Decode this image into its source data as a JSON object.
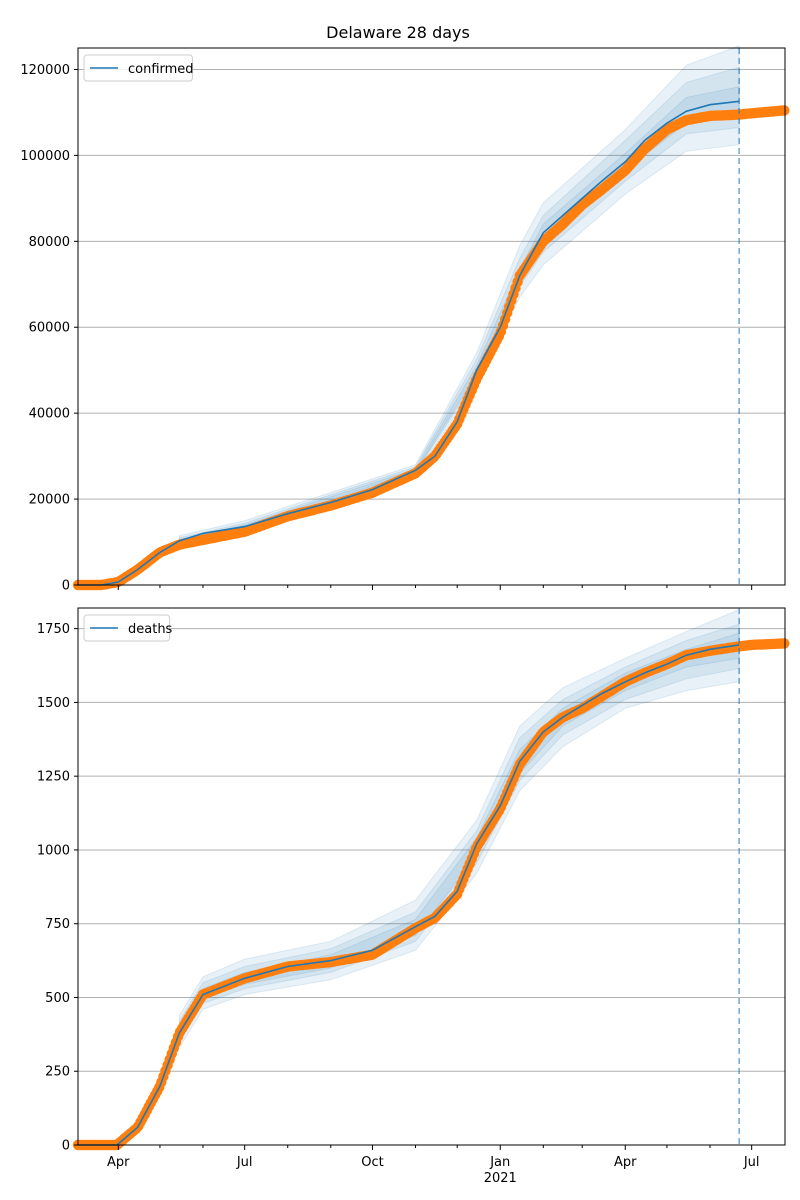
{
  "title": "Delaware 28 days",
  "x_ticks": {
    "major": [
      {
        "date": "2020-04-01",
        "label": "Apr"
      },
      {
        "date": "2020-07-01",
        "label": "Jul"
      },
      {
        "date": "2020-10-01",
        "label": "Oct"
      },
      {
        "date": "2021-01-01",
        "label": "Jan"
      },
      {
        "date": "2021-04-01",
        "label": "Apr"
      },
      {
        "date": "2021-07-01",
        "label": "Jul"
      }
    ],
    "year_label": {
      "date": "2021-01-01",
      "label": "2021"
    },
    "minor": [
      "2020-05-01",
      "2020-06-01",
      "2020-08-01",
      "2020-09-01",
      "2020-11-01",
      "2020-12-01",
      "2021-02-01",
      "2021-03-01",
      "2021-05-01",
      "2021-06-01"
    ]
  },
  "chart_data": [
    {
      "type": "line",
      "xlim": [
        "2020-03-03",
        "2021-07-25"
      ],
      "ylim": [
        0,
        125000
      ],
      "yticks": [
        0,
        20000,
        40000,
        60000,
        80000,
        100000,
        120000
      ],
      "grid": "horizontal",
      "legend": {
        "placement": "top-left",
        "entries": [
          "confirmed"
        ]
      },
      "forecast_start": "2021-06-22",
      "colors": {
        "model": "#1f77b4",
        "observed": "#ff7f0e",
        "band": "#1f77b4"
      },
      "series": [
        {
          "name": "confirmed",
          "kind": "model-median",
          "x": [
            "2020-03-03",
            "2020-03-20",
            "2020-04-01",
            "2020-04-15",
            "2020-05-01",
            "2020-05-15",
            "2020-06-01",
            "2020-07-01",
            "2020-08-01",
            "2020-09-01",
            "2020-10-01",
            "2020-11-01",
            "2020-11-15",
            "2020-12-01",
            "2020-12-15",
            "2021-01-01",
            "2021-01-15",
            "2021-02-01",
            "2021-02-15",
            "2021-03-01",
            "2021-03-15",
            "2021-04-01",
            "2021-04-15",
            "2021-05-01",
            "2021-05-15",
            "2021-06-01",
            "2021-06-22"
          ],
          "y": [
            0,
            0,
            700,
            3600,
            7600,
            10300,
            12000,
            13600,
            16600,
            19200,
            22200,
            26700,
            30000,
            38000,
            50000,
            60000,
            72000,
            82000,
            86000,
            90000,
            94000,
            98500,
            103500,
            107500,
            110300,
            111800,
            112600
          ]
        },
        {
          "name": "observed",
          "kind": "points",
          "x": [
            "2020-03-03",
            "2020-03-20",
            "2020-04-01",
            "2020-04-15",
            "2020-05-01",
            "2020-05-15",
            "2020-06-01",
            "2020-07-01",
            "2020-08-01",
            "2020-09-01",
            "2020-10-01",
            "2020-11-01",
            "2020-11-15",
            "2020-12-01",
            "2020-12-15",
            "2021-01-01",
            "2021-01-15",
            "2021-02-01",
            "2021-02-15",
            "2021-03-01",
            "2021-03-15",
            "2021-04-01",
            "2021-04-15",
            "2021-05-01",
            "2021-05-15",
            "2021-06-01",
            "2021-06-22",
            "2021-07-01",
            "2021-07-25"
          ],
          "y": [
            0,
            0,
            700,
            3600,
            7600,
            9400,
            10500,
            12400,
            16000,
            18500,
            21500,
            26000,
            30000,
            37500,
            48000,
            58500,
            72000,
            80000,
            84000,
            88500,
            92000,
            96500,
            101500,
            106000,
            108200,
            109200,
            109500,
            109800,
            110500
          ]
        },
        {
          "name": "band-outer",
          "kind": "band",
          "x": [
            "2020-05-15",
            "2020-07-01",
            "2020-11-01",
            "2020-12-15",
            "2021-01-15",
            "2021-02-01",
            "2021-04-01",
            "2021-05-15",
            "2021-06-22"
          ],
          "lower": [
            9000,
            12200,
            25800,
            46500,
            67000,
            74500,
            91000,
            101000,
            102500
          ],
          "upper": [
            11500,
            15000,
            28000,
            54000,
            79000,
            89000,
            106000,
            121000,
            125500
          ]
        },
        {
          "name": "band-mid",
          "kind": "band",
          "x": [
            "2020-05-15",
            "2020-07-01",
            "2020-11-01",
            "2020-12-15",
            "2021-01-15",
            "2021-02-01",
            "2021-04-01",
            "2021-05-15",
            "2021-06-22"
          ],
          "lower": [
            9600,
            12800,
            26200,
            48000,
            69500,
            77500,
            94000,
            105000,
            106500
          ],
          "upper": [
            11000,
            14400,
            27500,
            52500,
            76000,
            86000,
            103500,
            117000,
            120500
          ]
        },
        {
          "name": "band-inner",
          "kind": "band",
          "x": [
            "2020-05-15",
            "2020-07-01",
            "2020-11-01",
            "2020-12-15",
            "2021-01-15",
            "2021-02-01",
            "2021-04-01",
            "2021-05-15",
            "2021-06-22"
          ],
          "lower": [
            10000,
            13200,
            26400,
            49000,
            70800,
            79500,
            96500,
            107500,
            109500
          ],
          "upper": [
            10600,
            14000,
            27000,
            51000,
            73500,
            84000,
            100500,
            113500,
            116000
          ]
        }
      ]
    },
    {
      "type": "line",
      "xlim": [
        "2020-03-03",
        "2021-07-25"
      ],
      "ylim": [
        0,
        1820
      ],
      "yticks": [
        0,
        250,
        500,
        750,
        1000,
        1250,
        1500,
        1750
      ],
      "grid": "horizontal",
      "legend": {
        "placement": "top-left",
        "entries": [
          "deaths"
        ]
      },
      "forecast_start": "2021-06-22",
      "colors": {
        "model": "#1f77b4",
        "observed": "#ff7f0e",
        "band": "#1f77b4"
      },
      "series": [
        {
          "name": "deaths",
          "kind": "model-median",
          "x": [
            "2020-03-03",
            "2020-03-31",
            "2020-04-15",
            "2020-05-01",
            "2020-05-15",
            "2020-06-01",
            "2020-07-01",
            "2020-08-01",
            "2020-09-01",
            "2020-10-01",
            "2020-11-01",
            "2020-11-15",
            "2020-12-01",
            "2020-12-15",
            "2021-01-01",
            "2021-01-15",
            "2021-02-01",
            "2021-02-15",
            "2021-03-01",
            "2021-03-15",
            "2021-04-01",
            "2021-04-15",
            "2021-05-01",
            "2021-05-15",
            "2021-06-01",
            "2021-06-22"
          ],
          "y": [
            0,
            0,
            60,
            200,
            380,
            510,
            565,
            605,
            625,
            660,
            740,
            775,
            860,
            1020,
            1150,
            1300,
            1400,
            1450,
            1490,
            1530,
            1570,
            1600,
            1630,
            1660,
            1680,
            1695
          ]
        },
        {
          "name": "observed",
          "kind": "points",
          "x": [
            "2020-03-03",
            "2020-03-31",
            "2020-04-15",
            "2020-05-01",
            "2020-05-15",
            "2020-06-01",
            "2020-07-01",
            "2020-08-01",
            "2020-09-01",
            "2020-10-01",
            "2020-11-01",
            "2020-11-15",
            "2020-12-01",
            "2020-12-15",
            "2021-01-01",
            "2021-01-15",
            "2021-02-01",
            "2021-02-15",
            "2021-03-01",
            "2021-03-15",
            "2021-04-01",
            "2021-04-15",
            "2021-05-01",
            "2021-05-15",
            "2021-06-01",
            "2021-06-22",
            "2021-07-01",
            "2021-07-25"
          ],
          "y": [
            0,
            0,
            60,
            200,
            380,
            510,
            565,
            605,
            620,
            645,
            735,
            770,
            850,
            1010,
            1140,
            1290,
            1400,
            1450,
            1480,
            1520,
            1570,
            1600,
            1630,
            1660,
            1675,
            1690,
            1695,
            1700
          ]
        },
        {
          "name": "band-outer",
          "kind": "band",
          "x": [
            "2020-05-15",
            "2020-06-01",
            "2020-07-01",
            "2020-09-01",
            "2020-11-01",
            "2020-12-15",
            "2021-01-15",
            "2021-02-15",
            "2021-04-01",
            "2021-05-15",
            "2021-06-22"
          ],
          "lower": [
            330,
            460,
            510,
            560,
            660,
            920,
            1200,
            1350,
            1480,
            1540,
            1570
          ],
          "upper": [
            440,
            570,
            630,
            690,
            830,
            1100,
            1420,
            1550,
            1650,
            1740,
            1815
          ]
        },
        {
          "name": "band-mid",
          "kind": "band",
          "x": [
            "2020-05-15",
            "2020-06-01",
            "2020-07-01",
            "2020-09-01",
            "2020-11-01",
            "2020-12-15",
            "2021-01-15",
            "2021-02-15",
            "2021-04-01",
            "2021-05-15",
            "2021-06-22"
          ],
          "lower": [
            350,
            480,
            530,
            585,
            690,
            955,
            1235,
            1390,
            1510,
            1580,
            1615
          ],
          "upper": [
            420,
            550,
            605,
            665,
            790,
            1065,
            1380,
            1510,
            1620,
            1710,
            1765
          ]
        },
        {
          "name": "band-inner",
          "kind": "band",
          "x": [
            "2020-05-15",
            "2020-06-01",
            "2020-07-01",
            "2020-09-01",
            "2020-11-01",
            "2020-12-15",
            "2021-01-15",
            "2021-02-15",
            "2021-04-01",
            "2021-05-15",
            "2021-06-22"
          ],
          "lower": [
            365,
            495,
            545,
            600,
            710,
            980,
            1260,
            1420,
            1540,
            1620,
            1650
          ],
          "upper": [
            400,
            530,
            585,
            645,
            765,
            1040,
            1340,
            1480,
            1600,
            1680,
            1735
          ]
        }
      ]
    }
  ]
}
